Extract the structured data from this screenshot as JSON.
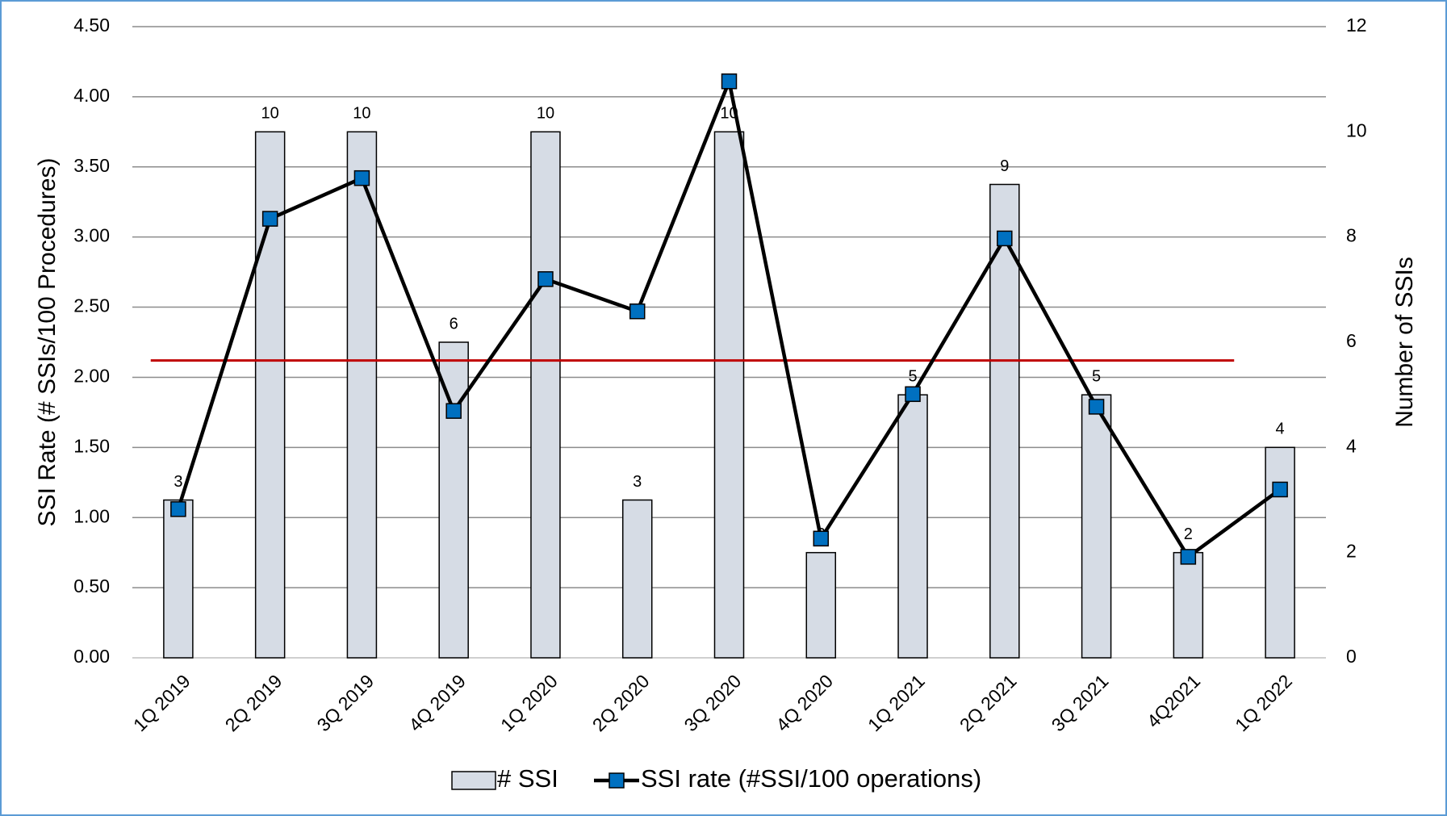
{
  "chart_data": {
    "type": "bar_line",
    "categories": [
      "1Q 2019",
      "2Q 2019",
      "3Q 2019",
      "4Q 2019",
      "1Q 2020",
      "2Q 2020",
      "3Q 2020",
      "4Q 2020",
      "1Q 2021",
      "2Q 2021",
      "3Q 2021",
      "4Q2021",
      "1Q 2022"
    ],
    "series": [
      {
        "name": "# SSI",
        "type": "bar",
        "axis": "y2",
        "color": "#d6dce5",
        "values": [
          3,
          10,
          10,
          6,
          10,
          3,
          10,
          2,
          5,
          9,
          5,
          2,
          4
        ]
      },
      {
        "name": "SSI rate (#SSI/100 operations)",
        "type": "line",
        "axis": "y",
        "color": "#000000",
        "marker_color": "#0070c0",
        "values": [
          1.06,
          3.13,
          3.42,
          1.76,
          2.7,
          2.47,
          4.11,
          0.85,
          1.88,
          2.99,
          1.79,
          0.72,
          1.2
        ]
      }
    ],
    "reference_line": {
      "value": 2.12,
      "color": "#c00000"
    },
    "ylabel": "SSI Rate (# SSIs/100 Procedures)",
    "y2label": "Number of SSIs",
    "ylim": [
      0,
      4.5
    ],
    "yticks": [
      {
        "value": 0,
        "label": "0.00"
      },
      {
        "value": 0.5,
        "label": "0.50"
      },
      {
        "value": 1,
        "label": "1.00"
      },
      {
        "value": 1.5,
        "label": "1.50"
      },
      {
        "value": 2,
        "label": "2.00"
      },
      {
        "value": 2.5,
        "label": "2.50"
      },
      {
        "value": 3,
        "label": "3.00"
      },
      {
        "value": 3.5,
        "label": "3.50"
      },
      {
        "value": 4,
        "label": "4.00"
      },
      {
        "value": 4.5,
        "label": "4.50"
      }
    ],
    "y2lim": [
      0,
      12
    ],
    "y2ticks": [
      0,
      2,
      4,
      6,
      8,
      10,
      12
    ],
    "grid": true,
    "legend": "bottom"
  }
}
